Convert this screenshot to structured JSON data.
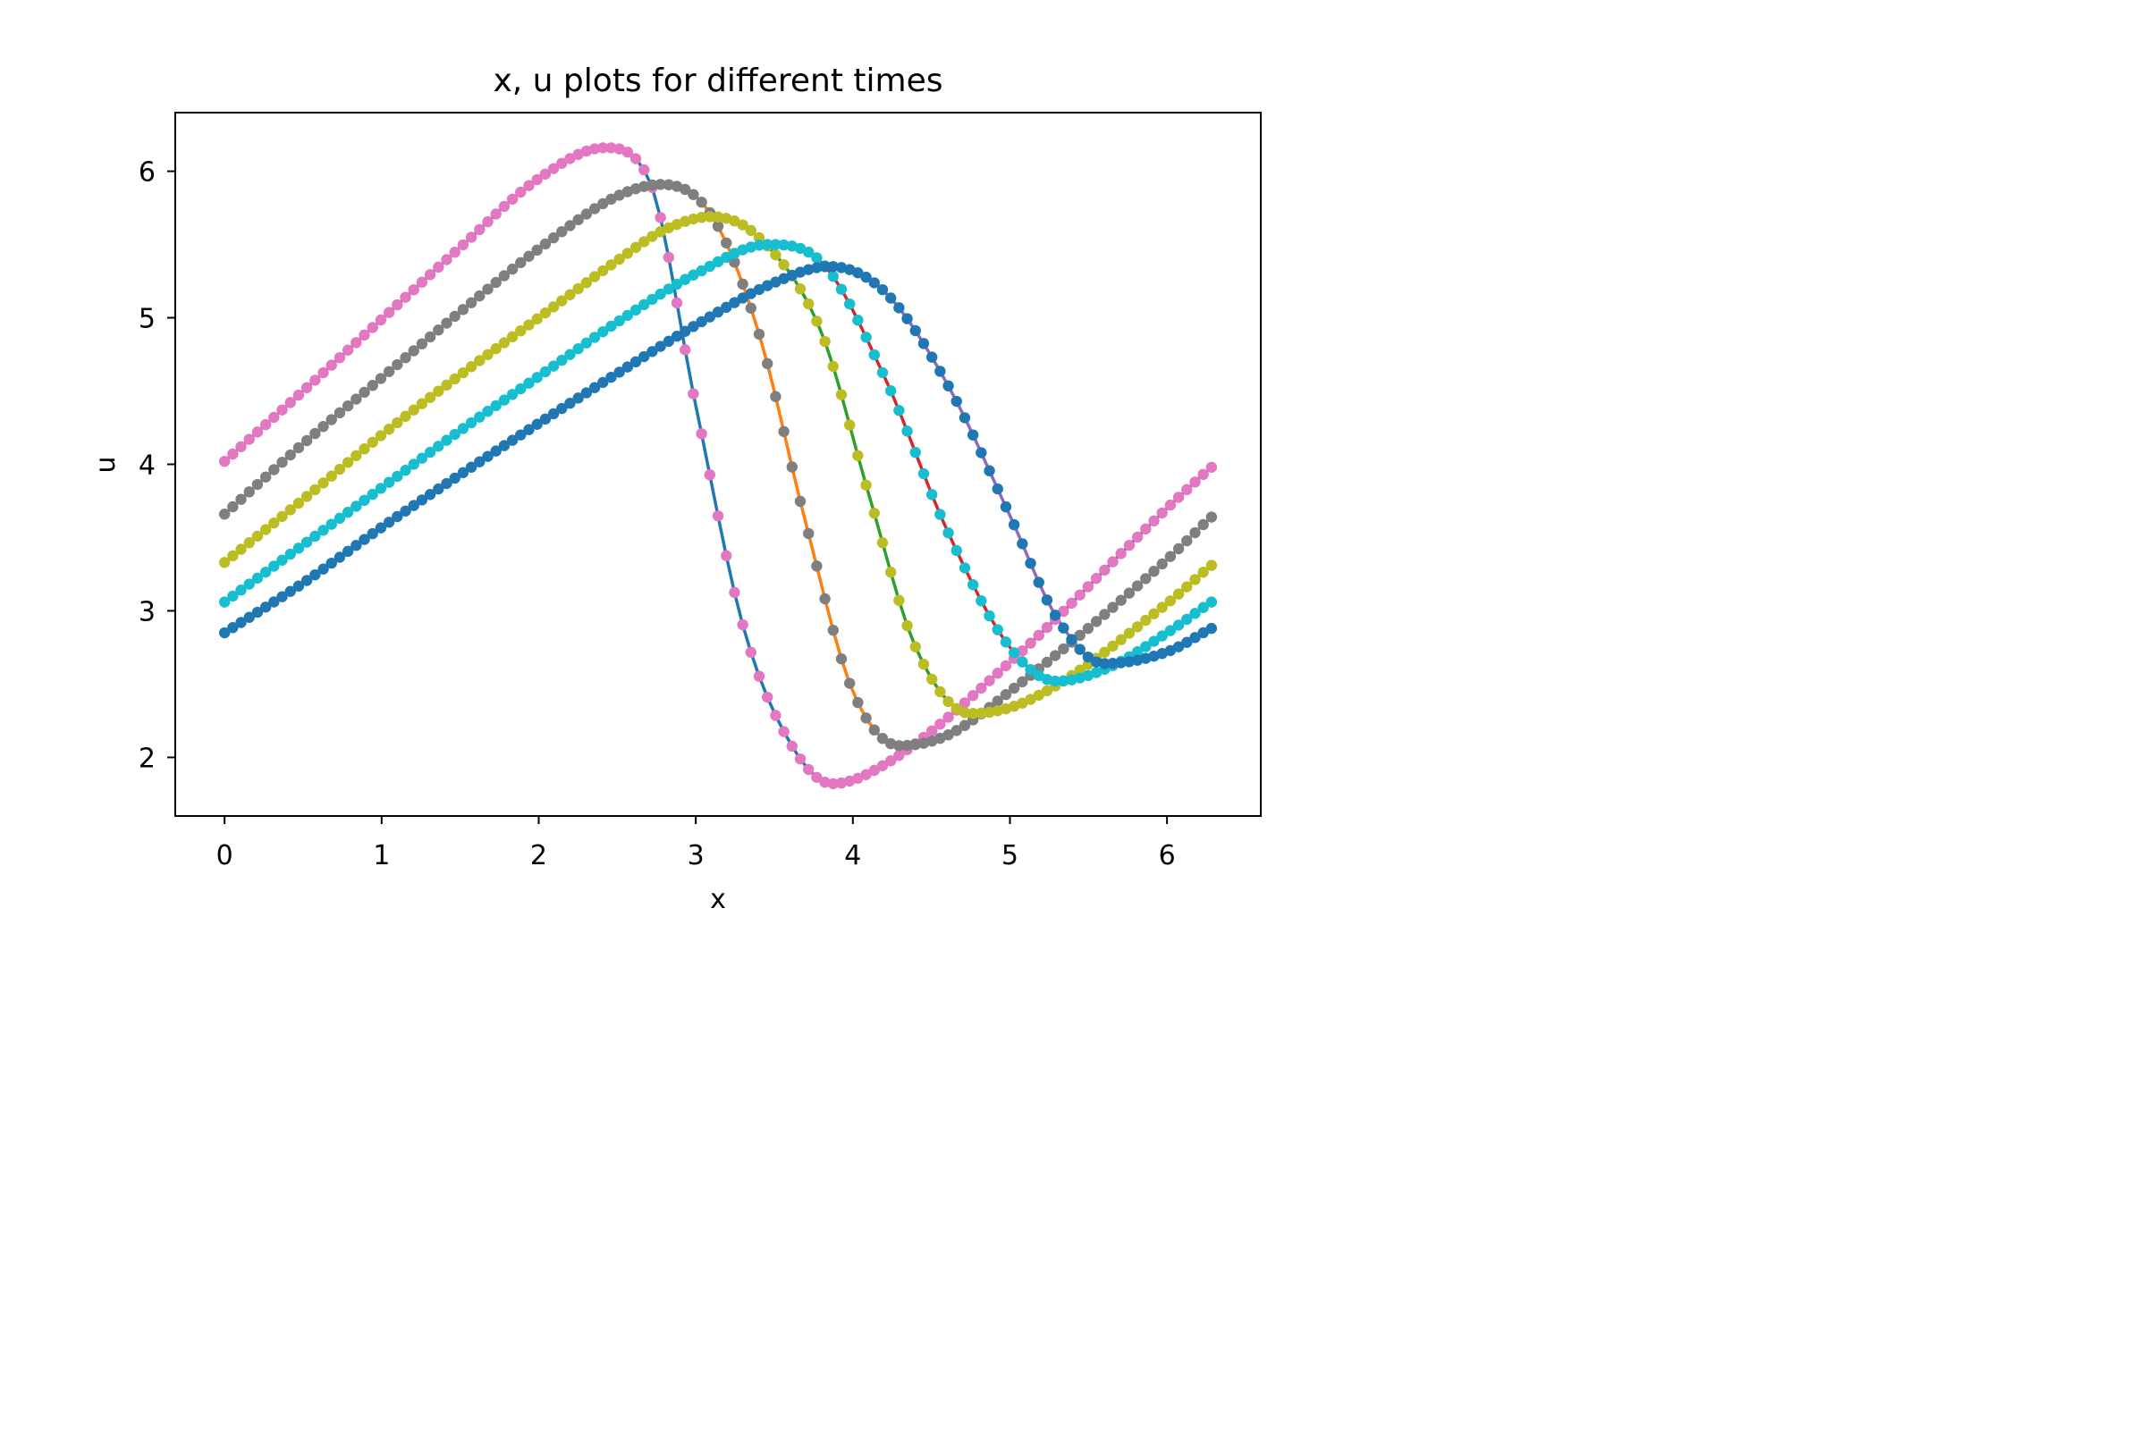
{
  "chart_data": {
    "type": "line",
    "title": "x, u plots for different times",
    "xlabel": "x",
    "ylabel": "u",
    "xlim": [
      -0.314,
      6.597
    ],
    "ylim": [
      1.6,
      6.4
    ],
    "xticks": [
      0,
      1,
      2,
      3,
      4,
      5,
      6
    ],
    "yticks": [
      2,
      3,
      4,
      5,
      6
    ],
    "grid": false,
    "legend": "none",
    "x_range": [
      0,
      6.2832
    ],
    "num_points": 121,
    "series": [
      {
        "style": "line",
        "line_color": "#1f77b4",
        "marker_color": "#e377c2",
        "key_points": [
          [
            0,
            4.02
          ],
          [
            0.5,
            4.5
          ],
          [
            1.0,
            4.99
          ],
          [
            1.5,
            5.48
          ],
          [
            2.0,
            5.95
          ],
          [
            2.42,
            6.16
          ],
          [
            2.7,
            5.95
          ],
          [
            3.0,
            4.4
          ],
          [
            3.3,
            2.9
          ],
          [
            3.6,
            2.1
          ],
          [
            3.87,
            1.82
          ],
          [
            4.2,
            1.95
          ],
          [
            5.0,
            2.65
          ],
          [
            6.0,
            3.7
          ],
          [
            6.28,
            3.98
          ]
        ]
      },
      {
        "style": "line",
        "line_color": "#ff7f0e",
        "marker_color": "#7f7f7f",
        "key_points": [
          [
            0,
            3.66
          ],
          [
            0.5,
            4.14
          ],
          [
            1.0,
            4.59
          ],
          [
            1.5,
            5.04
          ],
          [
            2.0,
            5.47
          ],
          [
            2.5,
            5.83
          ],
          [
            2.78,
            5.91
          ],
          [
            3.1,
            5.7
          ],
          [
            3.4,
            4.9
          ],
          [
            3.7,
            3.6
          ],
          [
            4.0,
            2.45
          ],
          [
            4.3,
            2.08
          ],
          [
            4.6,
            2.15
          ],
          [
            5.0,
            2.45
          ],
          [
            6.0,
            3.35
          ],
          [
            6.28,
            3.64
          ]
        ]
      },
      {
        "style": "line",
        "line_color": "#2ca02c",
        "marker_color": "#bcbd22",
        "key_points": [
          [
            0,
            3.33
          ],
          [
            0.5,
            3.76
          ],
          [
            1.0,
            4.2
          ],
          [
            1.5,
            4.61
          ],
          [
            2.0,
            5.0
          ],
          [
            2.5,
            5.39
          ],
          [
            2.8,
            5.6
          ],
          [
            3.1,
            5.69
          ],
          [
            3.4,
            5.55
          ],
          [
            3.8,
            4.9
          ],
          [
            4.1,
            3.8
          ],
          [
            4.4,
            2.75
          ],
          [
            4.75,
            2.3
          ],
          [
            5.1,
            2.38
          ],
          [
            6.0,
            3.05
          ],
          [
            6.28,
            3.31
          ]
        ]
      },
      {
        "style": "line",
        "line_color": "#d62728",
        "marker_color": "#17becf",
        "key_points": [
          [
            0,
            3.06
          ],
          [
            0.5,
            3.45
          ],
          [
            1.0,
            3.84
          ],
          [
            1.5,
            4.23
          ],
          [
            2.0,
            4.6
          ],
          [
            2.5,
            4.97
          ],
          [
            3.0,
            5.3
          ],
          [
            3.46,
            5.5
          ],
          [
            3.8,
            5.38
          ],
          [
            4.2,
            4.6
          ],
          [
            4.6,
            3.55
          ],
          [
            5.0,
            2.75
          ],
          [
            5.3,
            2.52
          ],
          [
            5.6,
            2.6
          ],
          [
            6.0,
            2.85
          ],
          [
            6.28,
            3.06
          ]
        ]
      },
      {
        "style": "line",
        "line_color": "#9467bd",
        "marker_color": "#1f77b4",
        "key_points": [
          [
            0,
            2.85
          ],
          [
            0.5,
            3.19
          ],
          [
            1.0,
            3.57
          ],
          [
            1.5,
            3.93
          ],
          [
            2.0,
            4.28
          ],
          [
            2.5,
            4.62
          ],
          [
            3.0,
            4.95
          ],
          [
            3.5,
            5.24
          ],
          [
            3.85,
            5.35
          ],
          [
            4.2,
            5.18
          ],
          [
            4.6,
            4.55
          ],
          [
            5.0,
            3.65
          ],
          [
            5.3,
            2.95
          ],
          [
            5.6,
            2.64
          ],
          [
            6.0,
            2.72
          ],
          [
            6.28,
            2.88
          ]
        ]
      }
    ]
  }
}
